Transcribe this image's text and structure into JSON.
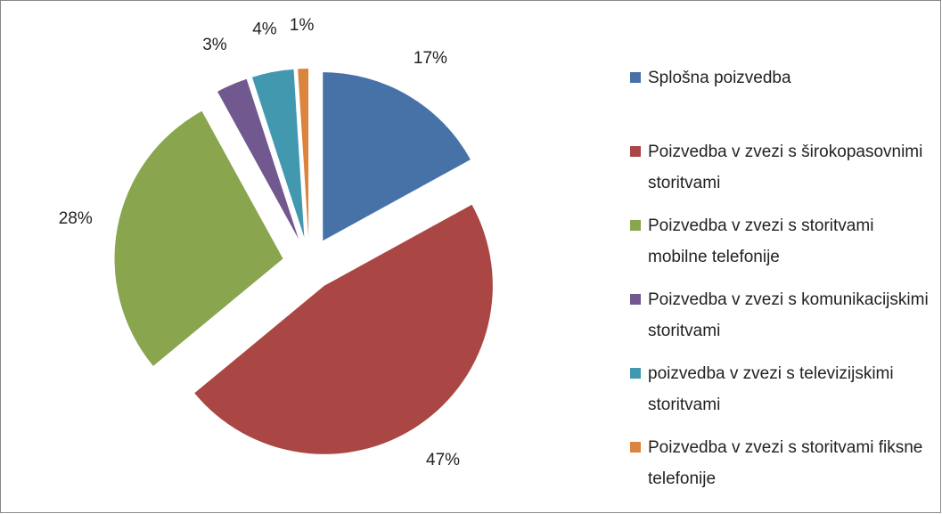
{
  "chart_data": {
    "type": "pie",
    "categories": [
      "Splošna poizvedba",
      "Poizvedba v zvezi s širokopasovnimi storitvami",
      "Poizvedba v zvezi s storitvami mobilne telefonije",
      "Poizvedba v zvezi s komunikacijskimi storitvami",
      "poizvedba v zvezi s televizijskimi storitvami",
      "Poizvedba v zvezi s storitvami fiksne telefonije"
    ],
    "values": [
      17,
      47,
      28,
      3,
      4,
      1
    ],
    "value_labels": [
      "17%",
      "47%",
      "28%",
      "3%",
      "4%",
      "1%"
    ],
    "colors": [
      "#4672a8",
      "#aa4644",
      "#89a54e",
      "#71588f",
      "#4298af",
      "#db843d"
    ],
    "legend": "right"
  }
}
